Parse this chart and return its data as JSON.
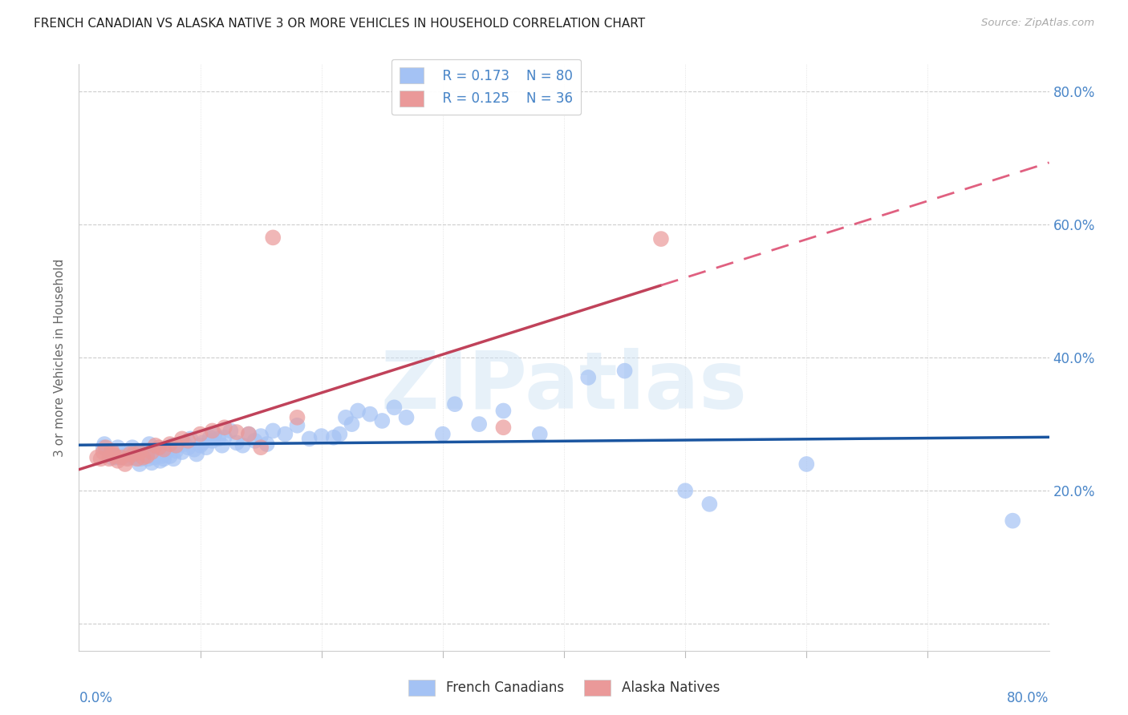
{
  "title": "FRENCH CANADIAN VS ALASKA NATIVE 3 OR MORE VEHICLES IN HOUSEHOLD CORRELATION CHART",
  "source": "Source: ZipAtlas.com",
  "ylabel": "3 or more Vehicles in Household",
  "xlim": [
    0.0,
    0.8
  ],
  "ylim": [
    -0.04,
    0.84
  ],
  "legend_R_blue": "R = 0.173",
  "legend_N_blue": "N = 80",
  "legend_R_pink": "R = 0.125",
  "legend_N_pink": "N = 36",
  "blue_color": "#a4c2f4",
  "pink_color": "#ea9999",
  "blue_line_color": "#1a55a0",
  "pink_solid_color": "#c0425a",
  "pink_dash_color": "#e06080",
  "axis_label_color": "#4a86c8",
  "watermark": "ZIPatlas",
  "french_canadians_x": [
    0.02,
    0.021,
    0.025,
    0.027,
    0.03,
    0.031,
    0.032,
    0.033,
    0.04,
    0.042,
    0.044,
    0.045,
    0.047,
    0.05,
    0.051,
    0.053,
    0.055,
    0.057,
    0.058,
    0.06,
    0.062,
    0.063,
    0.065,
    0.067,
    0.068,
    0.07,
    0.071,
    0.073,
    0.075,
    0.077,
    0.078,
    0.08,
    0.082,
    0.085,
    0.087,
    0.09,
    0.092,
    0.095,
    0.097,
    0.1,
    0.102,
    0.105,
    0.108,
    0.11,
    0.112,
    0.115,
    0.118,
    0.12,
    0.125,
    0.13,
    0.135,
    0.14,
    0.145,
    0.15,
    0.155,
    0.16,
    0.17,
    0.18,
    0.19,
    0.2,
    0.21,
    0.215,
    0.22,
    0.225,
    0.23,
    0.24,
    0.25,
    0.26,
    0.27,
    0.3,
    0.31,
    0.33,
    0.35,
    0.38,
    0.42,
    0.45,
    0.5,
    0.52,
    0.6,
    0.77
  ],
  "french_canadians_y": [
    0.265,
    0.27,
    0.255,
    0.25,
    0.25,
    0.26,
    0.265,
    0.25,
    0.25,
    0.26,
    0.265,
    0.25,
    0.258,
    0.24,
    0.248,
    0.26,
    0.258,
    0.248,
    0.27,
    0.242,
    0.25,
    0.258,
    0.262,
    0.245,
    0.252,
    0.248,
    0.256,
    0.26,
    0.252,
    0.268,
    0.248,
    0.26,
    0.268,
    0.258,
    0.27,
    0.265,
    0.278,
    0.262,
    0.255,
    0.268,
    0.272,
    0.265,
    0.28,
    0.275,
    0.285,
    0.278,
    0.268,
    0.28,
    0.29,
    0.272,
    0.268,
    0.285,
    0.275,
    0.282,
    0.27,
    0.29,
    0.285,
    0.298,
    0.278,
    0.282,
    0.28,
    0.285,
    0.31,
    0.3,
    0.32,
    0.315,
    0.305,
    0.325,
    0.31,
    0.285,
    0.33,
    0.3,
    0.32,
    0.285,
    0.37,
    0.38,
    0.2,
    0.18,
    0.24,
    0.155
  ],
  "alaska_natives_x": [
    0.015,
    0.018,
    0.02,
    0.022,
    0.025,
    0.027,
    0.028,
    0.03,
    0.032,
    0.035,
    0.038,
    0.04,
    0.042,
    0.045,
    0.048,
    0.05,
    0.053,
    0.056,
    0.06,
    0.063,
    0.066,
    0.07,
    0.075,
    0.08,
    0.085,
    0.09,
    0.1,
    0.11,
    0.12,
    0.13,
    0.14,
    0.15,
    0.16,
    0.18,
    0.35,
    0.48
  ],
  "alaska_natives_y": [
    0.25,
    0.248,
    0.258,
    0.265,
    0.248,
    0.26,
    0.255,
    0.252,
    0.245,
    0.25,
    0.24,
    0.248,
    0.255,
    0.255,
    0.248,
    0.258,
    0.25,
    0.252,
    0.258,
    0.268,
    0.265,
    0.262,
    0.27,
    0.268,
    0.278,
    0.275,
    0.285,
    0.29,
    0.295,
    0.288,
    0.285,
    0.265,
    0.58,
    0.31,
    0.295,
    0.578
  ]
}
